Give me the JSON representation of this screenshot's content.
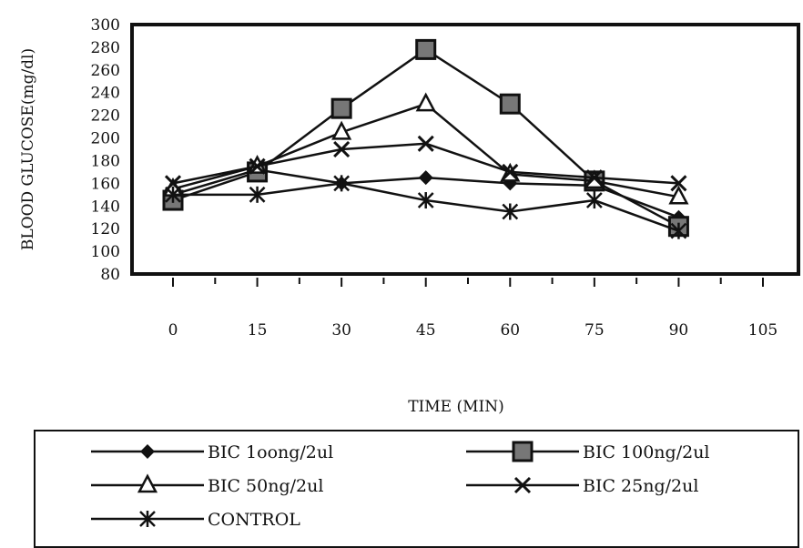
{
  "chart_data": {
    "type": "line",
    "title": "",
    "xlabel": "TIME (MIN)",
    "ylabel": "BLOOD GLUCOSE(mg/dl)",
    "xlim": [
      0,
      105
    ],
    "ylim": [
      80,
      300
    ],
    "x_ticks": [
      0,
      15,
      30,
      45,
      60,
      75,
      90,
      105
    ],
    "y_ticks": [
      80,
      100,
      120,
      140,
      160,
      180,
      200,
      220,
      240,
      260,
      280,
      300
    ],
    "grid": false,
    "legend_position": "bottom",
    "series": [
      {
        "name": "BIC 1oong/2ul",
        "marker": "diamond",
        "x": [
          0,
          15,
          30,
          45,
          60,
          75,
          90
        ],
        "y": [
          150,
          172,
          160,
          165,
          160,
          158,
          130
        ]
      },
      {
        "name": "BIC 100ng/2ul",
        "marker": "square",
        "x": [
          0,
          15,
          30,
          45,
          60,
          75,
          90
        ],
        "y": [
          145,
          170,
          226,
          278,
          230,
          162,
          122
        ]
      },
      {
        "name": "BIC 50ng/2ul",
        "marker": "triangle",
        "x": [
          0,
          15,
          30,
          45,
          60,
          75,
          90
        ],
        "y": [
          155,
          175,
          205,
          230,
          168,
          162,
          148
        ]
      },
      {
        "name": "BIC 25ng/2ul",
        "marker": "x",
        "x": [
          0,
          15,
          30,
          45,
          60,
          75,
          90
        ],
        "y": [
          160,
          175,
          190,
          195,
          170,
          165,
          160
        ]
      },
      {
        "name": "CONTROL",
        "marker": "asterisk",
        "x": [
          0,
          15,
          30,
          45,
          60,
          75,
          90
        ],
        "y": [
          150,
          150,
          160,
          145,
          135,
          145,
          118
        ]
      }
    ]
  }
}
